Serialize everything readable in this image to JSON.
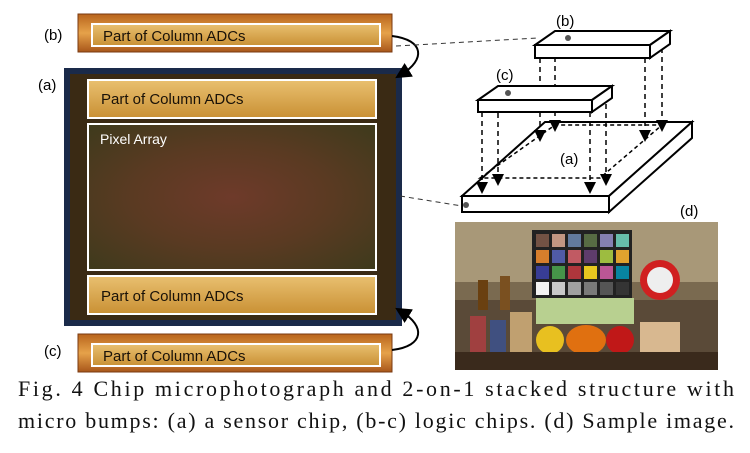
{
  "chip_photo": {
    "strip_b": {
      "label": "(b)",
      "text": "Part of Column ADCs"
    },
    "sensor": {
      "label": "(a)",
      "top": "Part of Column ADCs",
      "center": "Pixel Array",
      "bottom": "Part of Column ADCs"
    },
    "strip_c": {
      "label": "(c)",
      "text": "Part of Column ADCs"
    }
  },
  "stack_diagram": {
    "label_b": "(b)",
    "label_c": "(c)",
    "label_a": "(a)"
  },
  "sample_image": {
    "label": "(d)"
  },
  "caption": {
    "lines": [
      "Fig. 4 Chip microphotograph and 2-on-1 stacked structure with",
      "micro bumps: (a) a sensor chip, (b-c) logic chips. (d) Sample image."
    ]
  }
}
